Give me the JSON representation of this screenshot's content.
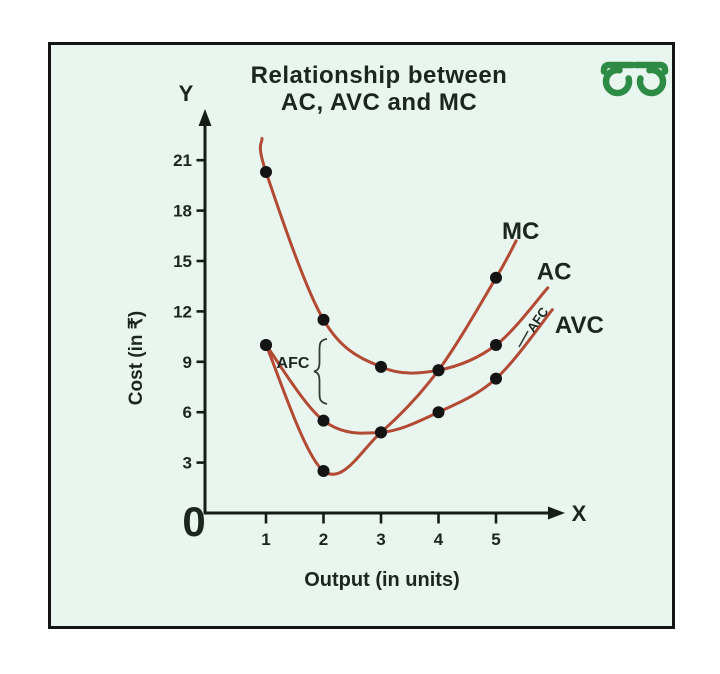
{
  "header": {
    "title_line1": "Relationship between",
    "title_line2": "AC, AVC and MC"
  },
  "colors": {
    "background": "#e9f6ef",
    "border": "#141414",
    "curve": "#b34a33",
    "points": "#141414",
    "text": "#1c2620",
    "axis": "#161d18",
    "logo_green": "#2e8b46"
  },
  "chart_data": {
    "type": "line",
    "title": "Relationship between AC, AVC and MC",
    "xlabel": "Output (in units)",
    "ylabel": "Cost (in ₹)",
    "axis_letters": {
      "x": "X",
      "y": "Y",
      "origin": "0"
    },
    "x_ticks": [
      1,
      2,
      3,
      4,
      5
    ],
    "y_ticks": [
      21,
      18,
      15,
      12,
      9,
      6,
      3
    ],
    "xlim": [
      0,
      6
    ],
    "ylim": [
      0,
      23
    ],
    "grid": false,
    "legend_position": "inline-curve-labels",
    "series": [
      {
        "name": "AC",
        "label": "AC",
        "x": [
          1,
          2,
          3,
          4,
          5
        ],
        "values": [
          20.3,
          11.5,
          8.7,
          8.5,
          10
        ],
        "path": [
          [
            0.93,
            22.3
          ],
          [
            1,
            20.3
          ],
          [
            2,
            11.5
          ],
          [
            3,
            8.7
          ],
          [
            4,
            8.5
          ],
          [
            5,
            10
          ],
          [
            5.9,
            13.4
          ]
        ],
        "label_pos": [
          6.01,
          13.9
        ]
      },
      {
        "name": "AVC",
        "label": "AVC",
        "x": [
          1,
          2,
          3,
          4,
          5
        ],
        "values": [
          10,
          5.5,
          4.8,
          6,
          8
        ],
        "path": [
          [
            1,
            10
          ],
          [
            2,
            5.5
          ],
          [
            3,
            4.8
          ],
          [
            4,
            6
          ],
          [
            5,
            8
          ],
          [
            5.98,
            12.1
          ]
        ],
        "label_pos": [
          6.45,
          10.7
        ]
      },
      {
        "name": "MC",
        "label": "MC",
        "x": [
          1,
          2,
          3,
          4,
          5
        ],
        "values": [
          10,
          2.5,
          4.8,
          8.5,
          14
        ],
        "path": [
          [
            1,
            10
          ],
          [
            2,
            2.5
          ],
          [
            3,
            4.8
          ],
          [
            4,
            8.5
          ],
          [
            5,
            14
          ],
          [
            5.35,
            16.2
          ]
        ],
        "label_pos": [
          5.43,
          16.3
        ]
      }
    ],
    "annotations": [
      {
        "label": "AFC",
        "type": "brace",
        "meaning": "vertical gap between AC and AVC at low output"
      },
      {
        "label": "AFC",
        "type": "leader",
        "meaning": "vertical gap between AC and AVC at high output"
      }
    ]
  }
}
